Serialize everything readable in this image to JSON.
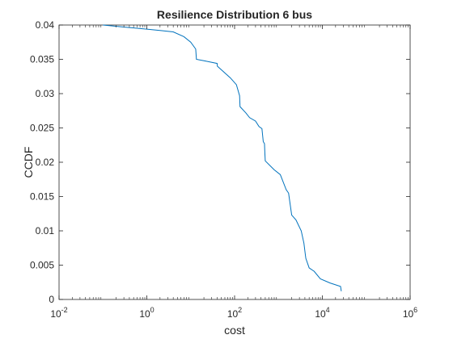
{
  "chart_data": {
    "type": "line",
    "title": "Resilience Distribution 6 bus",
    "xlabel": "cost",
    "ylabel": "CCDF",
    "xscale": "log",
    "xlim": [
      0.01,
      1000000
    ],
    "ylim": [
      0,
      0.04
    ],
    "x_tick_values": [
      0.01,
      1,
      100,
      10000,
      1000000
    ],
    "x_tick_labels": [
      {
        "base": "10",
        "exp": "-2"
      },
      {
        "base": "10",
        "exp": "0"
      },
      {
        "base": "10",
        "exp": "2"
      },
      {
        "base": "10",
        "exp": "4"
      },
      {
        "base": "10",
        "exp": "6"
      }
    ],
    "y_tick_values": [
      0,
      0.005,
      0.01,
      0.015,
      0.02,
      0.025,
      0.03,
      0.035,
      0.04
    ],
    "y_tick_labels": [
      "0",
      "0.005",
      "0.01",
      "0.015",
      "0.02",
      "0.025",
      "0.03",
      "0.035",
      "0.04"
    ],
    "grid": false,
    "legend": "none",
    "line_color": "#0072BD",
    "series": [
      {
        "x": [
          0.1,
          0.3,
          1,
          2,
          4,
          7,
          10,
          13,
          13.5,
          20,
          40,
          40.5,
          80,
          110,
          130,
          133,
          180,
          220,
          300,
          360,
          420,
          450,
          480,
          490,
          500,
          800,
          1100,
          1500,
          1700,
          2000,
          2500,
          3300,
          3800,
          4100,
          4200,
          5000,
          6500,
          9000,
          15000,
          26000,
          27000
        ],
        "y": [
          0.04,
          0.0397,
          0.0394,
          0.0392,
          0.039,
          0.0383,
          0.0375,
          0.0365,
          0.035,
          0.0348,
          0.0344,
          0.034,
          0.0323,
          0.0313,
          0.0297,
          0.0281,
          0.0272,
          0.0265,
          0.026,
          0.0252,
          0.0249,
          0.023,
          0.0227,
          0.0213,
          0.0202,
          0.0189,
          0.0182,
          0.016,
          0.0155,
          0.0123,
          0.0116,
          0.01,
          0.0082,
          0.0065,
          0.006,
          0.0046,
          0.0041,
          0.003,
          0.0024,
          0.0019,
          0.0012
        ]
      }
    ]
  }
}
